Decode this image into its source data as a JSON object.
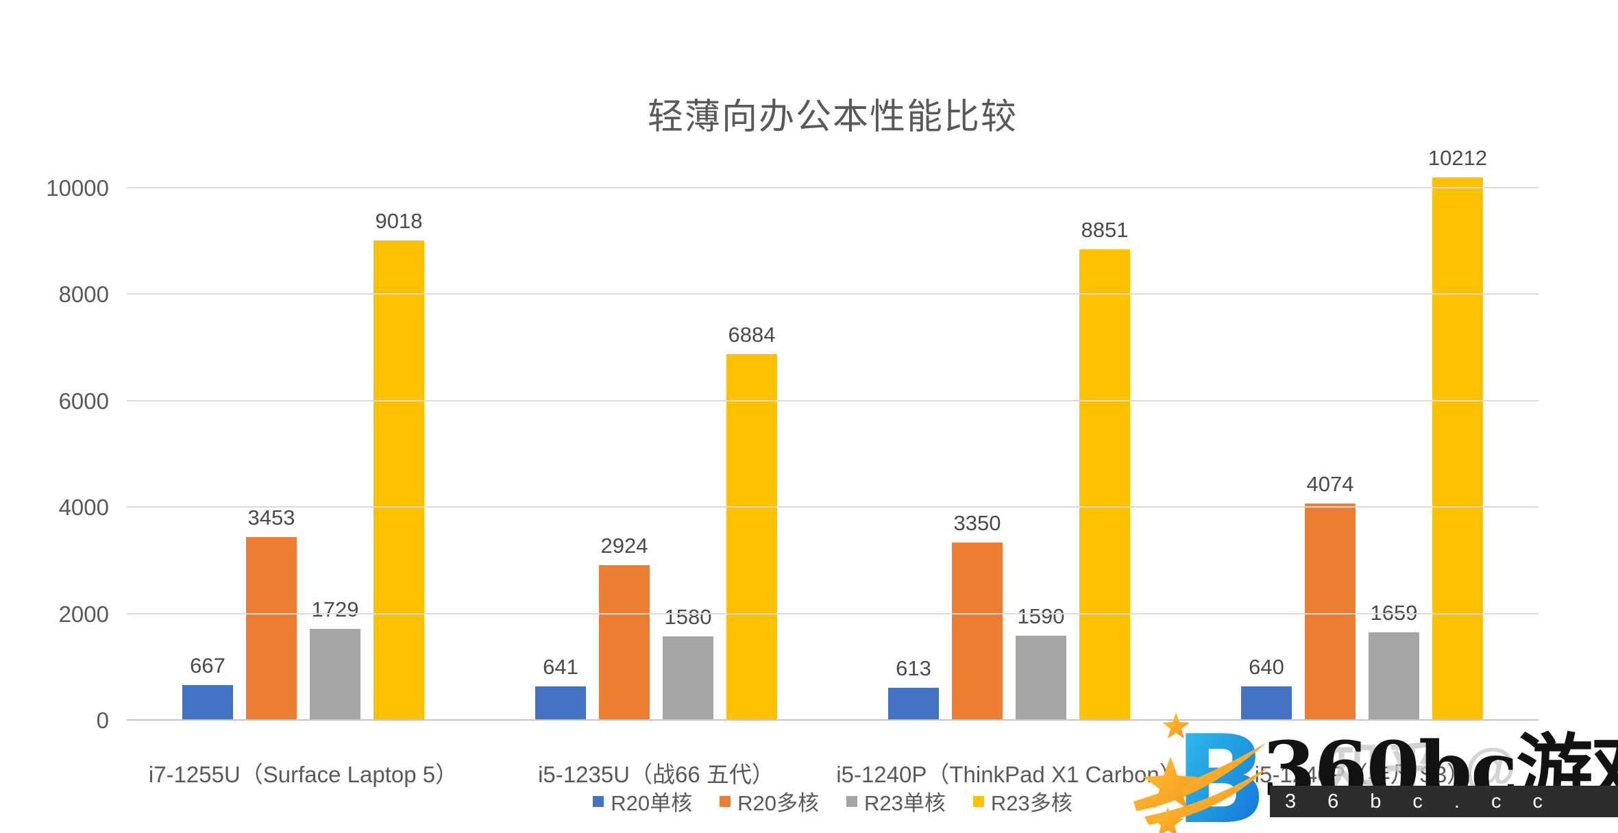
{
  "title": "轻薄向办公本性能比较",
  "chart_data": {
    "type": "bar",
    "title": "轻薄向办公本性能比较",
    "categories": [
      "i7-1255U（Surface Laptop 5）",
      "i5-1235U（战66 五代）",
      "i5-1240P（ThinkPad X1 Carbon）",
      "i5-1240P（非凡 S3）"
    ],
    "series": [
      {
        "name": "R20单核",
        "color": "#4472C4",
        "values": [
          667,
          641,
          613,
          640
        ]
      },
      {
        "name": "R20多核",
        "color": "#ED7D31",
        "values": [
          3453,
          2924,
          3350,
          4074
        ]
      },
      {
        "name": "R23单核",
        "color": "#A5A5A5",
        "values": [
          1729,
          1580,
          1590,
          1659
        ]
      },
      {
        "name": "R23多核",
        "color": "#FFC000",
        "values": [
          9018,
          6884,
          8851,
          10212
        ]
      }
    ],
    "ylim": [
      0,
      10000
    ],
    "yticks": [
      0,
      2000,
      4000,
      6000,
      8000,
      10000
    ],
    "grid": true,
    "data_labels": true,
    "legend_position": "bottom",
    "text_color": "#595959",
    "gridline_color": "#dcdcdc"
  },
  "watermark": {
    "brand_text": "360bc游戏",
    "domain_text": "36bc.cc",
    "logo_letter": "B",
    "background_watermark": "知乎 @"
  }
}
